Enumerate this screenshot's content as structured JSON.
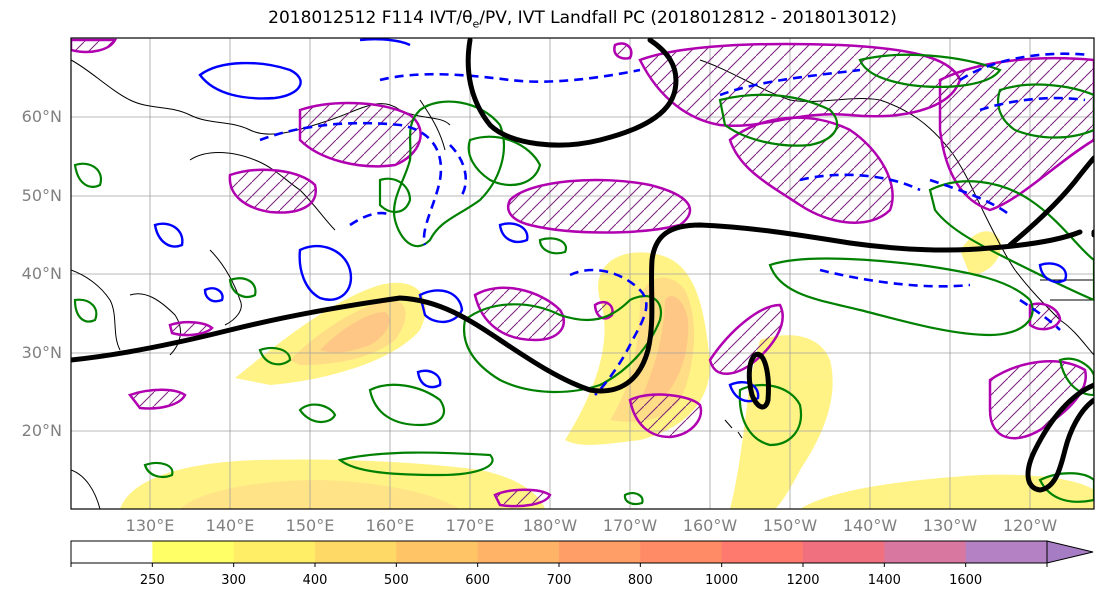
{
  "title": {
    "prefix": "2018012512 F114 IVT/θ",
    "sub": "e",
    "suffix": "/PV, IVT Landfall PC (2018012812 - 2018013012)"
  },
  "map": {
    "lat_ticks": [
      "20°N",
      "30°N",
      "40°N",
      "50°N",
      "60°N"
    ],
    "lon_ticks": [
      "130°E",
      "140°E",
      "150°E",
      "160°E",
      "170°E",
      "180°W",
      "170°W",
      "160°W",
      "150°W",
      "140°W",
      "130°W",
      "120°W"
    ],
    "lon_range_east": [
      120,
      250
    ],
    "lat_range": [
      10,
      70
    ],
    "grid": true
  },
  "colorbar": {
    "labels": [
      "250",
      "300",
      "400",
      "500",
      "600",
      "700",
      "800",
      "1000",
      "1200",
      "1400",
      "1600"
    ],
    "colors": [
      "#ffff66",
      "#ffee66",
      "#ffd966",
      "#ffc466",
      "#ffb366",
      "#ff9e66",
      "#ff8a66",
      "#ff7a6e",
      "#f07080",
      "#d878a0",
      "#b482c4",
      "#a67cc4"
    ],
    "extend": "max"
  },
  "colors": {
    "ivt_fill": "#ffd24d",
    "theta_e_contour": "#0000ff",
    "pv_contour": "#008000",
    "landfall_pc": "#b000b0",
    "jet_line": "#000000"
  }
}
